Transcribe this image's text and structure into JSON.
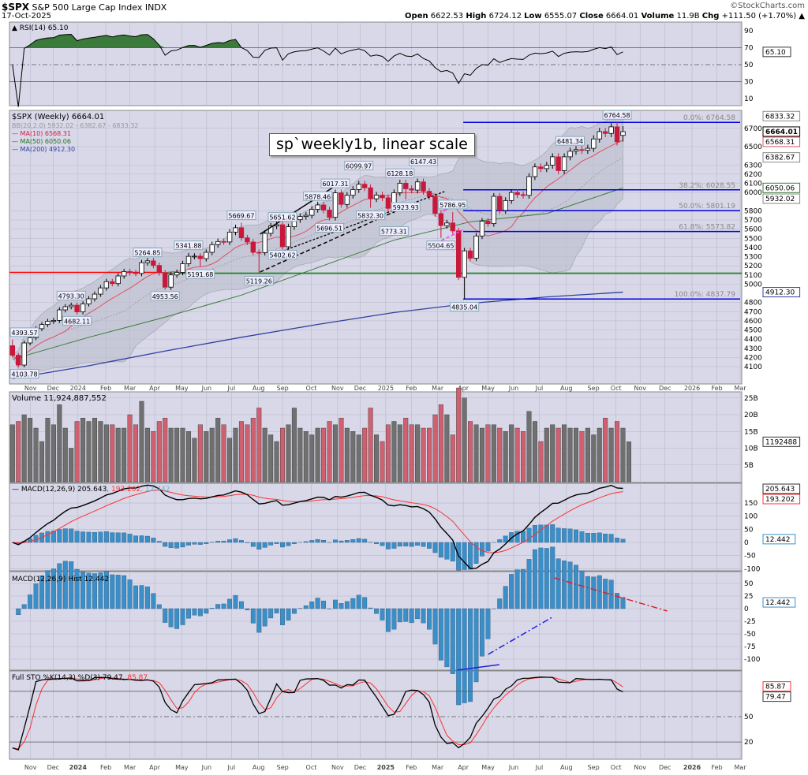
{
  "header": {
    "symbol": "$SPX",
    "name": "S&P 500 Large Cap Index",
    "exchange": "INDX",
    "date": "17-Oct-2025",
    "brand": "©StockCharts.com",
    "open_label": "Open",
    "open": "6622.53",
    "high_label": "High",
    "high": "6724.12",
    "low_label": "Low",
    "low": "6555.07",
    "close_label": "Close",
    "close": "6664.01",
    "volume_label": "Volume",
    "volume": "11.9B",
    "chg_label": "Chg",
    "chg": "+111.50 (+1.70%)"
  },
  "note": "sp`weekly1b, linear scale",
  "colors": {
    "panel_bg": "#d8d8e8",
    "grid": "#b8b8cc",
    "up": "#000000",
    "down": "#c8183c",
    "ma10": "#e05060",
    "ma50": "#3a7a3a",
    "ma200": "#3040a0",
    "bb": "#a0a0a8",
    "fib": "#0000dd",
    "hline_red": "#ff0000",
    "hline_green": "#008000",
    "macd": "#000000",
    "signal": "#ff3030",
    "hist": "#3a8fc8",
    "vol_up": "#707070",
    "vol_down": "#d06070"
  },
  "legends": {
    "rsi": "RSI(14) 65.10",
    "price": "$SPX (Weekly) 6664.01",
    "bb": "BB(20,2.0) 5932.02 - 6382.67 - 6833.32",
    "ma10": "MA(10) 6568.31",
    "ma50": "MA(50) 6050.06",
    "ma200": "MA(200) 4912.30",
    "volume": "Volume 11,924,887,552",
    "macd": "MACD(12,26,9) 205.643",
    "macd_signal": ", 193.202",
    "macd_hist": ", 12.442",
    "hist": "MACD(12,26,9) Hist 12.442",
    "sto": "Full STO %K(14,3) %D(3) 79.47,",
    "sto_d": " 85.87"
  },
  "axes": {
    "months_top": [
      "Nov",
      "Dec",
      "2024",
      "Feb",
      "Mar",
      "Apr",
      "May",
      "Jun",
      "Jul",
      "Aug",
      "Sep",
      "Oct",
      "Nov",
      "Dec",
      "2025",
      "Feb",
      "Mar",
      "Apr",
      "May",
      "Jun",
      "Jul",
      "Aug",
      "Sep",
      "Oct",
      "Nov",
      "Dec",
      "2026",
      "Feb",
      "Mar"
    ],
    "rsi_ticks": [
      90,
      70,
      50,
      30,
      10
    ],
    "price_ticks": [
      6700,
      6500,
      6300,
      6200,
      6100,
      6000,
      5800,
      5700,
      5600,
      5500,
      5400,
      5300,
      5200,
      5100,
      5000,
      4800,
      4700,
      4600,
      4500,
      4400,
      4300,
      4200,
      4100
    ],
    "volume_ticks": [
      "25B",
      "20B",
      "15B",
      "10B",
      "5B"
    ],
    "macd_ticks": [
      150,
      100,
      50,
      0,
      -50,
      -100
    ],
    "hist_ticks": [
      50,
      25,
      0,
      -25,
      -50,
      -75,
      -100
    ],
    "sto_ticks": [
      50,
      20
    ]
  },
  "value_tags": {
    "rsi": [
      {
        "v": "65.10",
        "p": 65.1,
        "c": "#333"
      }
    ],
    "price": [
      {
        "v": "6833.32",
        "p": 6833.32,
        "c": "#888"
      },
      {
        "v": "6664.01",
        "p": 6664.01,
        "c": "#000",
        "bold": true
      },
      {
        "v": "6568.31",
        "p": 6568.31,
        "c": "#e05060"
      },
      {
        "v": "6382.67",
        "p": 6382.67,
        "c": "#888"
      },
      {
        "v": "6050.06",
        "p": 6050.06,
        "c": "#3a7a3a"
      },
      {
        "v": "5932.02",
        "p": 5932.02,
        "c": "#888"
      },
      {
        "v": "4912.30",
        "p": 4912.3,
        "c": "#3040a0"
      }
    ],
    "volume": [
      {
        "v": "1192488",
        "p": 11.92,
        "c": "#333"
      }
    ],
    "macd": [
      {
        "v": "205.643",
        "p": 205.6,
        "c": "#333"
      },
      {
        "v": "193.202",
        "p": 193.2,
        "c": "#ff3030"
      },
      {
        "v": "12.442",
        "p": 12.4,
        "c": "#3a8fc8"
      }
    ],
    "hist": [
      {
        "v": "12.442",
        "p": 12.4,
        "c": "#3a8fc8"
      }
    ],
    "sto": [
      {
        "v": "85.87",
        "p": 85.87,
        "c": "#ff3030"
      },
      {
        "v": "79.47",
        "p": 79.47,
        "c": "#333"
      }
    ]
  },
  "chart_data": {
    "type": "candlestick",
    "interval": "weekly",
    "scale": "linear",
    "closes": [
      4224,
      4117,
      4358,
      4415,
      4514,
      4559,
      4594,
      4604,
      4719,
      4754,
      4770,
      4697,
      4784,
      4840,
      4891,
      4959,
      5027,
      5006,
      5089,
      5137,
      5124,
      5117,
      5234,
      5254,
      5204,
      5123,
      4967,
      5100,
      5128,
      5223,
      5303,
      5305,
      5278,
      5347,
      5431,
      5465,
      5460,
      5567,
      5615,
      5505,
      5459,
      5347,
      5344,
      5554,
      5634,
      5648,
      5408,
      5626,
      5703,
      5738,
      5751,
      5815,
      5864,
      5808,
      5729,
      5996,
      5870,
      5969,
      6032,
      6090,
      6051,
      5931,
      5971,
      5942,
      5827,
      5997,
      6101,
      6040,
      6026,
      6115,
      6013,
      5955,
      5770,
      5639,
      5667,
      5581,
      5074,
      5363,
      5283,
      5525,
      5687,
      5660,
      5958,
      5803,
      5912,
      6000,
      5977,
      5968,
      6173,
      6279,
      6260,
      6297,
      6389,
      6238,
      6389,
      6450,
      6467,
      6460,
      6482,
      6584,
      6664,
      6644,
      6716,
      6553,
      6664.01
    ],
    "last_bar": {
      "open": 6622.53,
      "high": 6724.12,
      "low": 6555.07,
      "close": 6664.01
    },
    "volume_billions": [
      17,
      18,
      20,
      19,
      16,
      12,
      19,
      17,
      23,
      16,
      10,
      18,
      19,
      18,
      19,
      18,
      17,
      17,
      16,
      16,
      20,
      17,
      24,
      16,
      15,
      18,
      19,
      16,
      16,
      16,
      15,
      13,
      17,
      15,
      16,
      19,
      17,
      13,
      16,
      18,
      17,
      19,
      22,
      16,
      14,
      12,
      16,
      17,
      22,
      16,
      15,
      14,
      16,
      16,
      18,
      17,
      19,
      16,
      15,
      14,
      16,
      22,
      14,
      12,
      17,
      18,
      17,
      19,
      17,
      17,
      16,
      16,
      20,
      23,
      20,
      14,
      28,
      25,
      18,
      17,
      16,
      17,
      17,
      16,
      15,
      17,
      16,
      15,
      21,
      18,
      12,
      16,
      17,
      16,
      17,
      16,
      16,
      15,
      16,
      14,
      16,
      19,
      16,
      18,
      16,
      11.92
    ],
    "ma50": [
      4180,
      4420,
      4640,
      4880,
      5180,
      5480,
      5680,
      5770,
      6050.06
    ],
    "ma200": [
      3970,
      4110,
      4270,
      4420,
      4560,
      4690,
      4790,
      4860,
      4912.3
    ],
    "price_labels": [
      {
        "v": "4393.57",
        "t": "high"
      },
      {
        "v": "4103.78",
        "t": "low"
      },
      {
        "v": "4793.30",
        "t": "high"
      },
      {
        "v": "4682.11",
        "t": "low"
      },
      {
        "v": "5264.85",
        "t": "high"
      },
      {
        "v": "4953.56",
        "t": "low"
      },
      {
        "v": "5341.88",
        "t": "high"
      },
      {
        "v": "5191.68",
        "t": "low"
      },
      {
        "v": "5669.67",
        "t": "high"
      },
      {
        "v": "5119.26",
        "t": "low"
      },
      {
        "v": "5651.62",
        "t": "high"
      },
      {
        "v": "5402.62",
        "t": "low"
      },
      {
        "v": "5878.46",
        "t": "high"
      },
      {
        "v": "5696.51",
        "t": "low"
      },
      {
        "v": "6017.31",
        "t": "high"
      },
      {
        "v": "6099.97",
        "t": "high"
      },
      {
        "v": "5832.30",
        "t": "low"
      },
      {
        "v": "5773.31",
        "t": "low"
      },
      {
        "v": "6128.18",
        "t": "high"
      },
      {
        "v": "5923.93",
        "t": "low"
      },
      {
        "v": "6147.43",
        "t": "high"
      },
      {
        "v": "5786.95",
        "t": "high"
      },
      {
        "v": "5504.65",
        "t": "low"
      },
      {
        "v": "4835.04",
        "t": "low"
      },
      {
        "v": "6481.34",
        "t": "high"
      },
      {
        "v": "6764.58",
        "t": "high"
      }
    ],
    "fib_levels": [
      {
        "label": "0.0%: 6764.58",
        "p": 6764.58
      },
      {
        "label": "38.2%: 6028.55",
        "p": 6028.55
      },
      {
        "label": "50.0%: 5801.19",
        "p": 5801.19
      },
      {
        "label": "61.8%: 5573.82",
        "p": 5573.82
      },
      {
        "label": "100.0%: 4837.79",
        "p": 4837.79
      }
    ],
    "support_line": 5119.26,
    "rsi_bands": [
      70,
      50,
      30
    ],
    "sto_bands": [
      80,
      50,
      20
    ]
  }
}
